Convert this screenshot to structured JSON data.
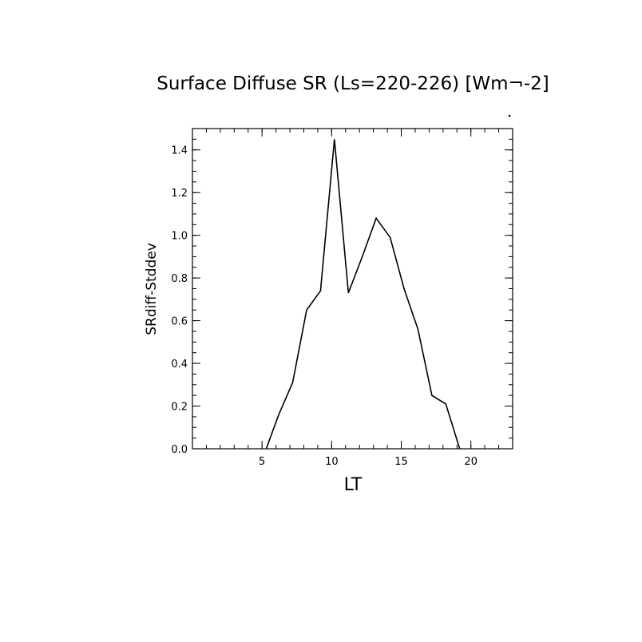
{
  "chart_data": {
    "type": "line",
    "title": "Surface Diffuse SR (Ls=220-226) [Wm¬-2]",
    "xlabel": "LT",
    "ylabel": "SRdiff-Stddev",
    "xlim": [
      0,
      23
    ],
    "ylim": [
      0,
      1.5
    ],
    "xticks": [
      5,
      10,
      15,
      20
    ],
    "xtick_labels": [
      "5",
      "10",
      "15",
      "20"
    ],
    "xminor_step": 1,
    "yticks": [
      0,
      0.2,
      0.4,
      0.6,
      0.8,
      1.0,
      1.2,
      1.4
    ],
    "ytick_labels": [
      "0.0",
      "0.2",
      "0.4",
      "0.6",
      "0.8",
      "1.0",
      "1.2",
      "1.4"
    ],
    "yminor_step": 0.05,
    "grid": false,
    "series": [
      {
        "color": "#000000",
        "x": [
          5.3,
          6.2,
          7.2,
          8.2,
          9.2,
          10.2,
          11.2,
          12.2,
          13.2,
          14.2,
          15.2,
          16.2,
          17.2,
          18.2,
          19.2
        ],
        "y": [
          0.0,
          0.16,
          0.31,
          0.65,
          0.74,
          1.45,
          0.73,
          0.9,
          1.08,
          0.99,
          0.75,
          0.56,
          0.25,
          0.21,
          0.0
        ]
      }
    ]
  }
}
